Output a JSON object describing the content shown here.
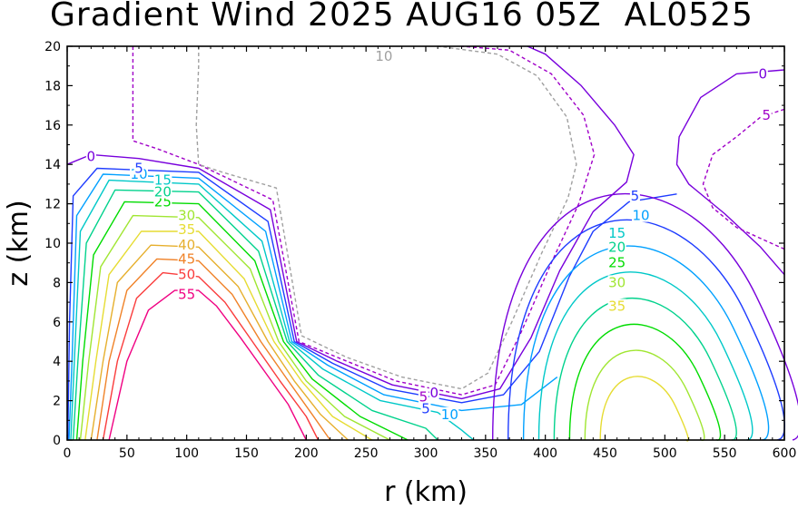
{
  "chart_data": {
    "type": "contour",
    "title": "Gradient Wind 2025 AUG16 05Z  AL0525",
    "xlabel": "r (km)",
    "ylabel": "z (km)",
    "xlim": [
      0,
      600
    ],
    "ylim": [
      0,
      20
    ],
    "x_ticks": [
      0,
      50,
      100,
      150,
      200,
      250,
      300,
      350,
      400,
      450,
      500,
      550,
      600
    ],
    "y_ticks": [
      0,
      2,
      4,
      6,
      8,
      10,
      12,
      14,
      16,
      18,
      20
    ],
    "grid": false,
    "contour_interval": 5,
    "colors": {
      "-10": "#a0a0a0",
      "-5": "#a000c8",
      "0": "#7800dc",
      "5": "#1e3cff",
      "10": "#00a0ff",
      "15": "#00c8c8",
      "20": "#00d28c",
      "25": "#00dc00",
      "30": "#a0e632",
      "35": "#e6dc32",
      "40": "#e6af2d",
      "45": "#f08228",
      "50": "#fa3c3c",
      "55": "#f00082"
    },
    "series": [
      {
        "name": "inner_55",
        "value": 55,
        "label": "55",
        "points": [
          [
            35,
            0
          ],
          [
            50,
            4
          ],
          [
            68,
            6.6
          ],
          [
            90,
            7.6
          ],
          [
            110,
            7.6
          ],
          [
            125,
            6.8
          ],
          [
            145,
            5.2
          ],
          [
            165,
            3.5
          ],
          [
            185,
            1.8
          ],
          [
            200,
            0
          ]
        ]
      },
      {
        "name": "inner_50",
        "value": 50,
        "label": "50",
        "points": [
          [
            30,
            0
          ],
          [
            42,
            4
          ],
          [
            58,
            7.2
          ],
          [
            80,
            8.5
          ],
          [
            110,
            8.3
          ],
          [
            132,
            7
          ],
          [
            155,
            5
          ],
          [
            178,
            3
          ],
          [
            200,
            1.2
          ],
          [
            210,
            0
          ]
        ]
      },
      {
        "name": "inner_45",
        "value": 45,
        "label": "45",
        "points": [
          [
            25,
            0
          ],
          [
            35,
            4
          ],
          [
            50,
            7.6
          ],
          [
            75,
            9.2
          ],
          [
            110,
            9.1
          ],
          [
            138,
            7.4
          ],
          [
            162,
            5
          ],
          [
            185,
            3
          ],
          [
            205,
            1.3
          ],
          [
            220,
            0
          ]
        ]
      },
      {
        "name": "inner_40",
        "value": 40,
        "label": "40",
        "points": [
          [
            20,
            0
          ],
          [
            30,
            4
          ],
          [
            42,
            8
          ],
          [
            70,
            9.9
          ],
          [
            110,
            9.8
          ],
          [
            143,
            7.8
          ],
          [
            168,
            5
          ],
          [
            190,
            3
          ],
          [
            212,
            1.3
          ],
          [
            235,
            0
          ]
        ]
      },
      {
        "name": "inner_35",
        "value": 35,
        "label": "35",
        "points": [
          [
            15,
            0
          ],
          [
            24,
            4
          ],
          [
            35,
            8.4
          ],
          [
            62,
            10.6
          ],
          [
            110,
            10.6
          ],
          [
            148,
            8.2
          ],
          [
            173,
            5
          ],
          [
            196,
            3
          ],
          [
            222,
            1.2
          ],
          [
            255,
            0
          ]
        ]
      },
      {
        "name": "inner_30",
        "value": 30,
        "label": "30",
        "points": [
          [
            11,
            0
          ],
          [
            18,
            4
          ],
          [
            28,
            8.8
          ],
          [
            55,
            11.4
          ],
          [
            110,
            11.3
          ],
          [
            153,
            8.7
          ],
          [
            177,
            5
          ],
          [
            200,
            3
          ],
          [
            232,
            1.2
          ],
          [
            270,
            0
          ]
        ]
      },
      {
        "name": "inner_25",
        "value": 25,
        "label": "25",
        "points": [
          [
            8,
            0
          ],
          [
            13,
            4
          ],
          [
            22,
            9.4
          ],
          [
            48,
            12.1
          ],
          [
            110,
            12
          ],
          [
            157,
            9.1
          ],
          [
            181,
            5
          ],
          [
            205,
            3.1
          ],
          [
            245,
            1.2
          ],
          [
            285,
            0
          ]
        ]
      },
      {
        "name": "inner_20",
        "value": 20,
        "label": "20",
        "points": [
          [
            5,
            0
          ],
          [
            9,
            4
          ],
          [
            16,
            10
          ],
          [
            40,
            12.7
          ],
          [
            110,
            12.6
          ],
          [
            160,
            9.6
          ],
          [
            184,
            5
          ],
          [
            210,
            3.3
          ],
          [
            255,
            1.5
          ],
          [
            300,
            0.6
          ],
          [
            310,
            0
          ]
        ]
      },
      {
        "name": "inner_15",
        "value": 15,
        "label": "15",
        "points": [
          [
            3,
            0
          ],
          [
            6,
            4
          ],
          [
            11,
            10.6
          ],
          [
            35,
            13.2
          ],
          [
            110,
            13
          ],
          [
            163,
            10.1
          ],
          [
            186,
            5
          ],
          [
            214,
            3.6
          ],
          [
            262,
            2
          ],
          [
            310,
            1.4
          ],
          [
            330,
            0.5
          ],
          [
            340,
            0
          ]
        ]
      },
      {
        "name": "inner_10",
        "value": 10,
        "label": "10",
        "points": [
          [
            1.5,
            0
          ],
          [
            4,
            4
          ],
          [
            8,
            11.4
          ],
          [
            30,
            13.5
          ],
          [
            110,
            13.3
          ],
          [
            166,
            10.6
          ],
          [
            188,
            5
          ],
          [
            218,
            3.8
          ],
          [
            265,
            2.3
          ],
          [
            330,
            1.5
          ],
          [
            380,
            1.8
          ],
          [
            410,
            3.2
          ]
        ]
      },
      {
        "name": "inner_5",
        "value": 5,
        "label": "5",
        "points": [
          [
            0.5,
            0
          ],
          [
            2,
            6
          ],
          [
            5,
            12.4
          ],
          [
            25,
            13.8
          ],
          [
            110,
            13.6
          ],
          [
            168,
            11.1
          ],
          [
            190,
            5
          ],
          [
            222,
            3.9
          ],
          [
            268,
            2.6
          ],
          [
            330,
            1.9
          ],
          [
            365,
            2.3
          ],
          [
            395,
            4.5
          ],
          [
            420,
            8.3
          ],
          [
            440,
            10.6
          ],
          [
            470,
            12.1
          ],
          [
            510,
            12.5
          ]
        ]
      },
      {
        "name": "zero_line_left",
        "value": 0,
        "label": "0",
        "points": [
          [
            0,
            14
          ],
          [
            20,
            14.5
          ],
          [
            60,
            14.3
          ],
          [
            110,
            13.8
          ],
          [
            170,
            11.7
          ],
          [
            192,
            5
          ],
          [
            226,
            4
          ],
          [
            272,
            2.8
          ],
          [
            330,
            2.1
          ],
          [
            362,
            2.6
          ],
          [
            388,
            5.2
          ],
          [
            412,
            8.6
          ],
          [
            440,
            11.6
          ],
          [
            468,
            13.1
          ],
          [
            474,
            14.5
          ],
          [
            458,
            16
          ],
          [
            430,
            18
          ],
          [
            400,
            19.6
          ],
          [
            385,
            20
          ]
        ]
      },
      {
        "name": "zero_line_right",
        "value": 0,
        "label": "0",
        "points": [
          [
            600,
            8.4
          ],
          [
            580,
            9.8
          ],
          [
            550,
            11.5
          ],
          [
            520,
            13
          ],
          [
            510,
            14
          ],
          [
            512,
            15.4
          ],
          [
            530,
            17.4
          ],
          [
            560,
            18.6
          ],
          [
            600,
            18.8
          ]
        ]
      },
      {
        "name": "neg5_main",
        "value": -5,
        "label": "-5",
        "points": [
          [
            55,
            20
          ],
          [
            55,
            18.6
          ],
          [
            55,
            15.2
          ],
          [
            75,
            14.8
          ],
          [
            110,
            14
          ],
          [
            172,
            12.2
          ],
          [
            194,
            5
          ],
          [
            230,
            4.1
          ],
          [
            275,
            3
          ],
          [
            330,
            2.3
          ],
          [
            358,
            2.8
          ],
          [
            380,
            5.5
          ],
          [
            405,
            9
          ],
          [
            428,
            12
          ],
          [
            441,
            14.5
          ],
          [
            432,
            16.5
          ],
          [
            405,
            18.6
          ],
          [
            370,
            19.8
          ],
          [
            330,
            20
          ]
        ]
      },
      {
        "name": "neg5_right",
        "value": -5,
        "label": "-5",
        "points": [
          [
            600,
            16.8
          ],
          [
            580,
            16.4
          ],
          [
            560,
            15.4
          ],
          [
            540,
            14.5
          ],
          [
            532,
            13
          ],
          [
            540,
            11.8
          ],
          [
            560,
            10.8
          ],
          [
            585,
            10.1
          ],
          [
            600,
            9.7
          ]
        ]
      },
      {
        "name": "neg10_main",
        "value": -10,
        "label": "-10",
        "points": [
          [
            110,
            20
          ],
          [
            110,
            19
          ],
          [
            108,
            16
          ],
          [
            110,
            14
          ],
          [
            130,
            13.6
          ],
          [
            175,
            12.8
          ],
          [
            196,
            5.3
          ],
          [
            234,
            4.2
          ],
          [
            280,
            3.2
          ],
          [
            330,
            2.6
          ],
          [
            352,
            3.4
          ],
          [
            372,
            6
          ],
          [
            397,
            9.5
          ],
          [
            419,
            12.3
          ],
          [
            426,
            14
          ],
          [
            418,
            16.4
          ],
          [
            393,
            18.5
          ],
          [
            360,
            19.6
          ],
          [
            310,
            20
          ]
        ]
      }
    ],
    "labels": [
      {
        "text": "55",
        "value": 55,
        "r": 100,
        "z": 7.4
      },
      {
        "text": "50",
        "value": 50,
        "r": 100,
        "z": 8.4
      },
      {
        "text": "45",
        "value": 45,
        "r": 100,
        "z": 9.2
      },
      {
        "text": "40",
        "value": 40,
        "r": 100,
        "z": 9.9
      },
      {
        "text": "35",
        "value": 35,
        "r": 100,
        "z": 10.7
      },
      {
        "text": "30",
        "value": 30,
        "r": 100,
        "z": 11.4
      },
      {
        "text": "25",
        "value": 25,
        "r": 80,
        "z": 12.1
      },
      {
        "text": "20",
        "value": 20,
        "r": 80,
        "z": 12.6
      },
      {
        "text": "15",
        "value": 15,
        "r": 80,
        "z": 13.2
      },
      {
        "text": "10",
        "value": 10,
        "r": 60,
        "z": 13.5
      },
      {
        "text": "5",
        "value": 5,
        "r": 60,
        "z": 13.8
      },
      {
        "text": "0",
        "value": 0,
        "r": 20,
        "z": 14.4
      },
      {
        "text": "10",
        "value": -10,
        "r": 265,
        "z": 19.5
      },
      {
        "text": "5",
        "value": 5,
        "r": 475,
        "z": 12.4
      },
      {
        "text": "10",
        "value": 10,
        "r": 480,
        "z": 11.4
      },
      {
        "text": "15",
        "value": 15,
        "r": 460,
        "z": 10.5
      },
      {
        "text": "20",
        "value": 20,
        "r": 460,
        "z": 9.8
      },
      {
        "text": "25",
        "value": 25,
        "r": 460,
        "z": 9
      },
      {
        "text": "30",
        "value": 30,
        "r": 460,
        "z": 8
      },
      {
        "text": "35",
        "value": 35,
        "r": 460,
        "z": 6.8
      },
      {
        "text": "0",
        "value": 0,
        "r": 582,
        "z": 18.6
      },
      {
        "text": "5",
        "value": -5,
        "r": 585,
        "z": 16.5
      },
      {
        "text": "5",
        "value": 5,
        "r": 300,
        "z": 1.6
      },
      {
        "text": "10",
        "value": 10,
        "r": 320,
        "z": 1.3
      },
      {
        "text": "5",
        "value": -5,
        "r": 298,
        "z": 2.2
      },
      {
        "text": "0",
        "value": 0,
        "r": 307,
        "z": 2.4
      }
    ],
    "inner_core": {
      "values": [
        0,
        5,
        10,
        15,
        20,
        25,
        30,
        35
      ],
      "names": [
        "core_0",
        "core_5",
        "core_10",
        "core_15",
        "core_20",
        "core_25",
        "core_30",
        "core_35"
      ],
      "center_r": 482,
      "center_z": 2.5
    }
  },
  "title": "Gradient Wind 2025 AUG16 05Z  AL0525"
}
